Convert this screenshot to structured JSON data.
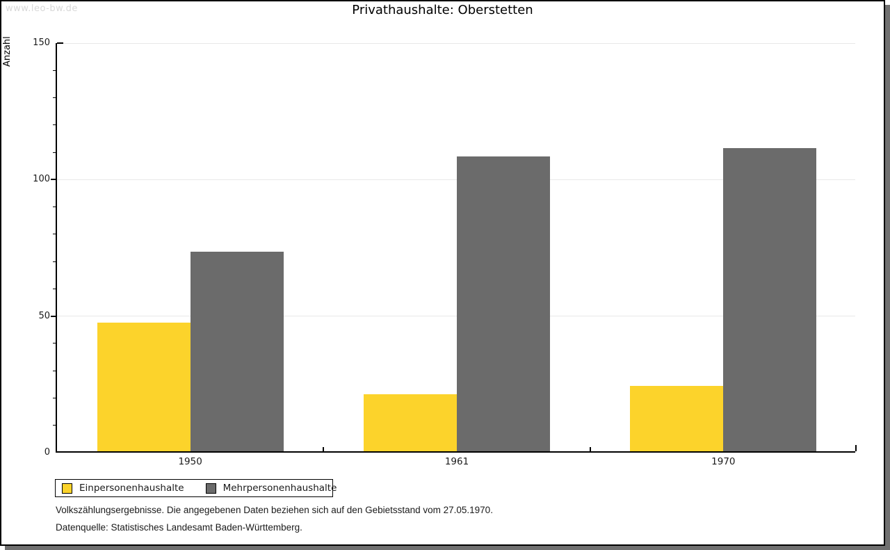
{
  "watermark": "www.leo-bw.de",
  "title": "Privathaushalte: Oberstetten",
  "chart_data": {
    "type": "bar",
    "title": "Privathaushalte: Oberstetten",
    "xlabel": "",
    "ylabel": "Anzahl",
    "categories": [
      "1950",
      "1961",
      "1970"
    ],
    "series": [
      {
        "name": "Einpersonenhaushalte",
        "color": "#FCD32B",
        "values": [
          47,
          21,
          24
        ]
      },
      {
        "name": "Mehrpersonenhaushalte",
        "color": "#6B6B6B",
        "values": [
          73,
          108,
          111
        ]
      }
    ],
    "ylim": [
      0,
      150
    ],
    "yticks_major": [
      0,
      50,
      100,
      150
    ],
    "ytick_minor_step": 10,
    "grid": "horizontal-major-lines",
    "legend_position": "bottom-left"
  },
  "footer": {
    "line1": "Volkszählungsergebnisse. Die angegebenen Daten beziehen sich auf den Gebietsstand vom 27.05.1970.",
    "line2": "Datenquelle: Statistisches Landesamt Baden-Württemberg."
  }
}
